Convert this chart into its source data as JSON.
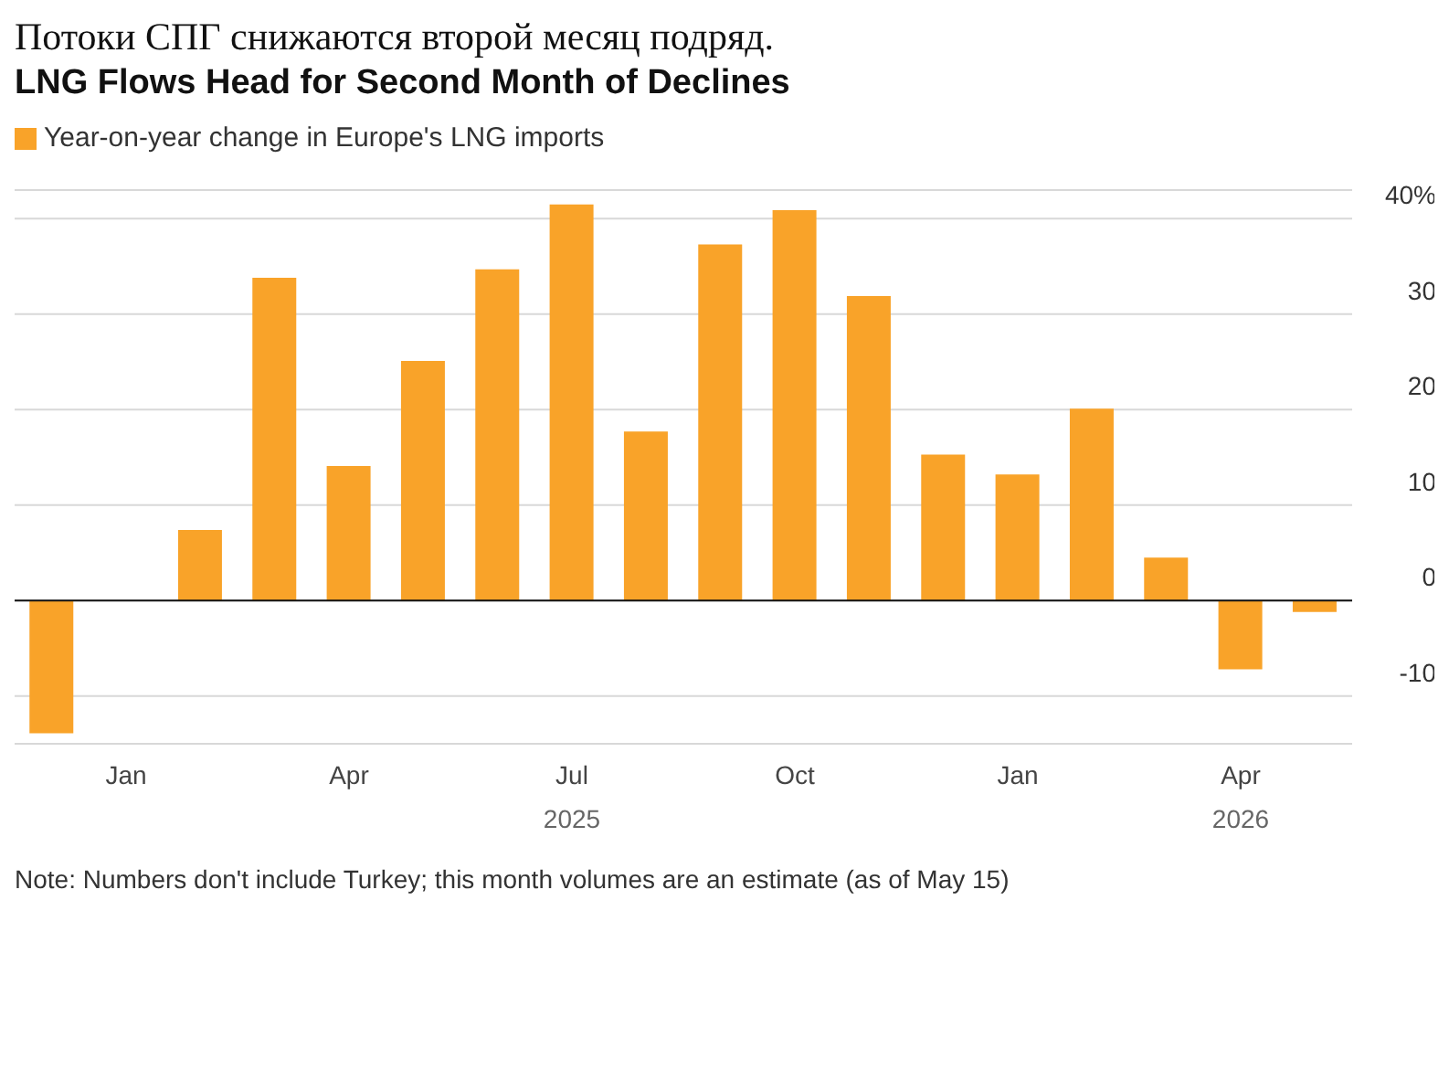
{
  "chart_data": {
    "type": "bar",
    "title": "Потоки СПГ снижаются второй месяц подряд.",
    "subtitle": "LNG Flows Head for Second Month of Declines",
    "categories": [
      null,
      "Jan",
      null,
      null,
      "Apr",
      null,
      null,
      "Jul\n2025",
      null,
      null,
      "Oct",
      null,
      null,
      "Jan",
      null,
      null,
      "Apr\n2026",
      null
    ],
    "series": [
      {
        "name": "Year-on-year change in Europe's LNG imports",
        "color": "#f9a329",
        "values": [
          -13.9,
          0,
          7.4,
          33.8,
          14.1,
          25.1,
          34.7,
          41.5,
          17.7,
          37.3,
          40.9,
          31.9,
          15.3,
          13.2,
          20.1,
          4.5,
          -7.2,
          -1.2
        ]
      }
    ],
    "ylim": [
      -15,
      43
    ],
    "yticks": [
      -10,
      0,
      10,
      20,
      30,
      {
        "value": 40,
        "label": "40%"
      }
    ],
    "grid": "y",
    "legend": "top left",
    "annotations": [
      "Note: Numbers don't include Turkey; this month volumes are an estimate (as of May 15)"
    ]
  }
}
